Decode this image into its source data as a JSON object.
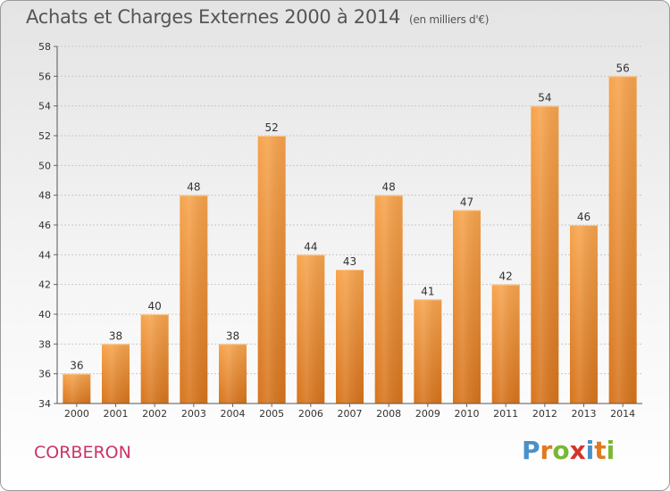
{
  "chart_data": {
    "type": "bar",
    "title": "Achats et Charges Externes 2000 à 2014",
    "subtitle": "(en milliers d'€)",
    "categories": [
      "2000",
      "2001",
      "2002",
      "2003",
      "2004",
      "2005",
      "2006",
      "2007",
      "2008",
      "2009",
      "2010",
      "2011",
      "2012",
      "2013",
      "2014"
    ],
    "values": [
      36,
      38,
      40,
      48,
      38,
      52,
      44,
      43,
      48,
      41,
      47,
      42,
      54,
      46,
      56
    ],
    "ylim": [
      34,
      58
    ],
    "yticks": [
      34,
      36,
      38,
      40,
      42,
      44,
      46,
      48,
      50,
      52,
      54,
      56,
      58
    ],
    "grid": true,
    "bar_color_top": "#f7a44d",
    "bar_color_bottom": "#d7741c"
  },
  "footer": {
    "commune": "CORBERON",
    "logo_letters": [
      "P",
      "r",
      "o",
      "x",
      "i",
      "t",
      "i"
    ],
    "logo_colors": [
      "#4a90c8",
      "#e07a1f",
      "#78b833",
      "#d4342c",
      "#4a90c8",
      "#e07a1f",
      "#78b833"
    ]
  }
}
